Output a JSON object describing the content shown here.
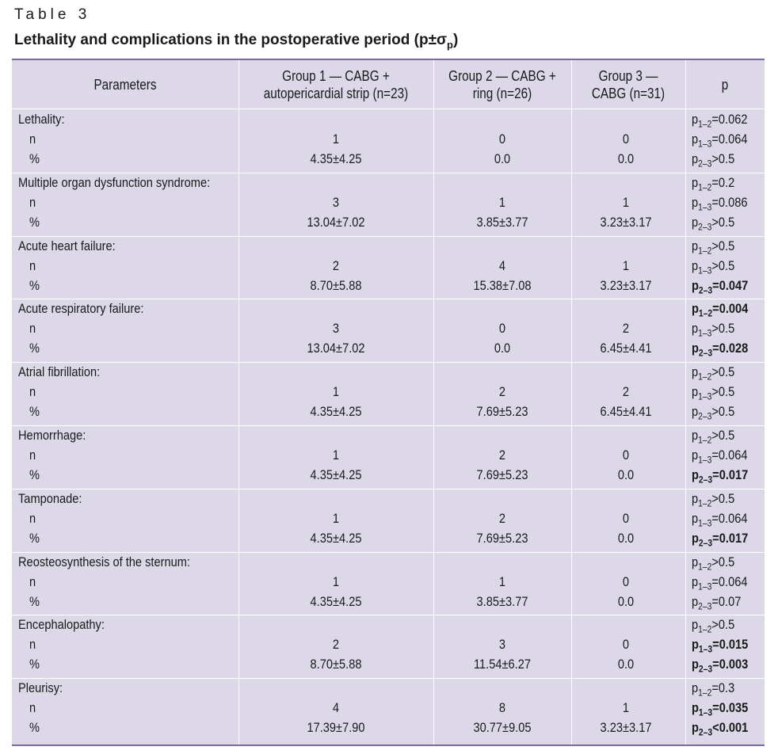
{
  "caption": {
    "label": "Table 3",
    "title": "Lethality and complications in the postoperative period (p±σ",
    "title_sub": "p",
    "title_end": ")"
  },
  "header": {
    "parameters": "Parameters",
    "group1": "Group 1 — CABG + autopericardial strip (n=23)",
    "group2": "Group 2 — CABG + ring (n=26)",
    "group3": "Group 3 — CABG (n=31)",
    "p": "p"
  },
  "row_labels": {
    "n": "n",
    "pct": "%"
  },
  "rows": [
    {
      "name": "Lethality:",
      "g1_n": "1",
      "g1_pct": "4.35±4.25",
      "g2_n": "0",
      "g2_pct": "0.0",
      "g3_n": "0",
      "g3_pct": "0.0",
      "p": [
        {
          "sub": "1–2",
          "val": "=0.062",
          "bold": false
        },
        {
          "sub": "1–3",
          "val": "=0.064",
          "bold": false
        },
        {
          "sub": "2–3",
          "val": ">0.5",
          "bold": false
        }
      ]
    },
    {
      "name": "Multiple organ dysfunction syndrome:",
      "g1_n": "3",
      "g1_pct": "13.04±7.02",
      "g2_n": "1",
      "g2_pct": "3.85±3.77",
      "g3_n": "1",
      "g3_pct": "3.23±3.17",
      "p": [
        {
          "sub": "1–2",
          "val": "=0.2",
          "bold": false
        },
        {
          "sub": "1–3",
          "val": "=0.086",
          "bold": false
        },
        {
          "sub": "2–3",
          "val": ">0.5",
          "bold": false
        }
      ]
    },
    {
      "name": "Acute heart failure:",
      "g1_n": "2",
      "g1_pct": "8.70±5.88",
      "g2_n": "4",
      "g2_pct": "15.38±7.08",
      "g3_n": "1",
      "g3_pct": "3.23±3.17",
      "p": [
        {
          "sub": "1–2",
          "val": ">0.5",
          "bold": false
        },
        {
          "sub": "1–3",
          "val": ">0.5",
          "bold": false
        },
        {
          "sub": "2–3",
          "val": "=0.047",
          "bold": true
        }
      ]
    },
    {
      "name": "Acute respiratory failure:",
      "g1_n": "3",
      "g1_pct": "13.04±7.02",
      "g2_n": "0",
      "g2_pct": "0.0",
      "g3_n": "2",
      "g3_pct": "6.45±4.41",
      "p": [
        {
          "sub": "1–2",
          "val": "=0.004",
          "bold": true
        },
        {
          "sub": "1–3",
          "val": ">0.5",
          "bold": false
        },
        {
          "sub": "2–3",
          "val": "=0.028",
          "bold": true
        }
      ]
    },
    {
      "name": "Atrial fibrillation:",
      "g1_n": "1",
      "g1_pct": "4.35±4.25",
      "g2_n": "2",
      "g2_pct": "7.69±5.23",
      "g3_n": "2",
      "g3_pct": "6.45±4.41",
      "p": [
        {
          "sub": "1–2",
          "val": ">0.5",
          "bold": false
        },
        {
          "sub": "1–3",
          "val": ">0.5",
          "bold": false
        },
        {
          "sub": "2–3",
          "val": ">0.5",
          "bold": false
        }
      ]
    },
    {
      "name": "Hemorrhage:",
      "g1_n": "1",
      "g1_pct": "4.35±4.25",
      "g2_n": "2",
      "g2_pct": "7.69±5.23",
      "g3_n": "0",
      "g3_pct": "0.0",
      "p": [
        {
          "sub": "1–2",
          "val": ">0.5",
          "bold": false
        },
        {
          "sub": "1–3",
          "val": "=0.064",
          "bold": false
        },
        {
          "sub": "2–3",
          "val": "=0.017",
          "bold": true
        }
      ]
    },
    {
      "name": "Tamponade:",
      "g1_n": "1",
      "g1_pct": "4.35±4.25",
      "g2_n": "2",
      "g2_pct": "7.69±5.23",
      "g3_n": "0",
      "g3_pct": "0.0",
      "p": [
        {
          "sub": "1–2",
          "val": ">0.5",
          "bold": false
        },
        {
          "sub": "1–3",
          "val": "=0.064",
          "bold": false
        },
        {
          "sub": "2–3",
          "val": "=0.017",
          "bold": true
        }
      ]
    },
    {
      "name": "Reosteosynthesis of the sternum:",
      "g1_n": "1",
      "g1_pct": "4.35±4.25",
      "g2_n": "1",
      "g2_pct": "3.85±3.77",
      "g3_n": "0",
      "g3_pct": "0.0",
      "p": [
        {
          "sub": "1–2",
          "val": ">0.5",
          "bold": false
        },
        {
          "sub": "1–3",
          "val": "=0.064",
          "bold": false
        },
        {
          "sub": "2–3",
          "val": "=0.07",
          "bold": false
        }
      ]
    },
    {
      "name": "Encephalopathy:",
      "g1_n": "2",
      "g1_pct": "8.70±5.88",
      "g2_n": "3",
      "g2_pct": "11.54±6.27",
      "g3_n": "0",
      "g3_pct": "0.0",
      "p": [
        {
          "sub": "1–2",
          "val": ">0.5",
          "bold": false
        },
        {
          "sub": "1–3",
          "val": "=0.015",
          "bold": true
        },
        {
          "sub": "2–3",
          "val": "=0.003",
          "bold": true
        }
      ]
    },
    {
      "name": "Pleurisy:",
      "g1_n": "4",
      "g1_pct": "17.39±7.90",
      "g2_n": "8",
      "g2_pct": "30.77±9.05",
      "g3_n": "1",
      "g3_pct": "3.23±3.17",
      "p": [
        {
          "sub": "1–2",
          "val": "=0.3",
          "bold": false
        },
        {
          "sub": "1–3",
          "val": "=0.035",
          "bold": true
        },
        {
          "sub": "2–3",
          "val": "<0.001",
          "bold": true
        }
      ]
    }
  ]
}
